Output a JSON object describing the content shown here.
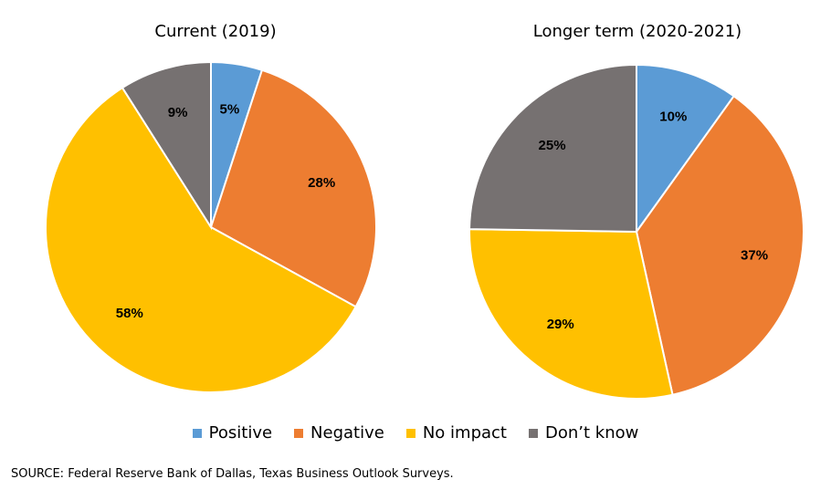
{
  "chart_data": [
    {
      "type": "pie",
      "title": "Current (2019)",
      "categories": [
        "Positive",
        "Negative",
        "No impact",
        "Don’t know"
      ],
      "values": [
        5,
        28,
        58,
        9
      ],
      "labels": [
        "5%",
        "28%",
        "58%",
        "9%"
      ]
    },
    {
      "type": "pie",
      "title": "Longer term (2020-2021)",
      "categories": [
        "Positive",
        "Negative",
        "No impact",
        "Don’t know"
      ],
      "values": [
        10,
        37,
        29,
        25
      ],
      "labels": [
        "10%",
        "37%",
        "29%",
        "25%"
      ]
    }
  ],
  "legend": {
    "position": "bottom",
    "items": [
      {
        "label": "Positive",
        "color": "#5B9BD5"
      },
      {
        "label": "Negative",
        "color": "#ED7D31"
      },
      {
        "label": "No impact",
        "color": "#FFC000"
      },
      {
        "label": "Don’t know",
        "color": "#767171"
      }
    ]
  },
  "source": "SOURCE: Federal Reserve Bank of Dallas, Texas Business Outlook Surveys."
}
